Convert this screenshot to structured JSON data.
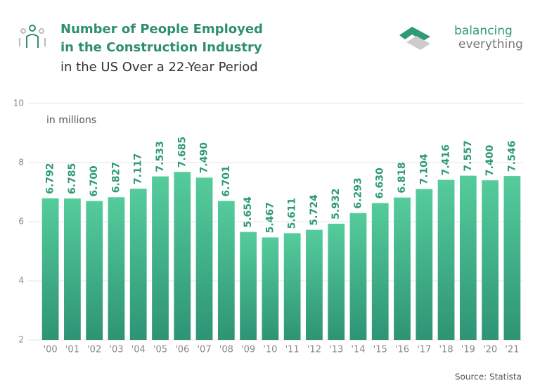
{
  "chart_data": {
    "type": "bar",
    "title": "Number of People Employed",
    "title_line2": "in the Construction Industry",
    "subtitle": "in the US Over a 22-Year Period",
    "unit_note": "in millions",
    "source": "Source: Statista",
    "brand": [
      "balancing",
      "everything"
    ],
    "categories": [
      "'00",
      "'01",
      "'02",
      "'03",
      "'04",
      "'05",
      "'06",
      "'07",
      "'08",
      "'09",
      "'10",
      "'11",
      "'12",
      "'13",
      "'14",
      "'15",
      "'16",
      "'17",
      "'18",
      "'19",
      "'20",
      "'21"
    ],
    "values": [
      6.792,
      6.785,
      6.7,
      6.827,
      7.117,
      7.533,
      7.685,
      7.49,
      6.701,
      5.654,
      5.467,
      5.611,
      5.724,
      5.932,
      6.293,
      6.63,
      6.818,
      7.104,
      7.416,
      7.557,
      7.4,
      7.546
    ],
    "value_labels": [
      "6.792",
      "6.785",
      "6.700",
      "6.827",
      "7.117",
      "7.533",
      "7.685",
      "7.490",
      "6.701",
      "5.654",
      "5.467",
      "5.611",
      "5.724",
      "5.932",
      "6.293",
      "6.630",
      "6.818",
      "7.104",
      "7.416",
      "7.557",
      "7.400",
      "7.546"
    ],
    "colors": [
      "#55cc9c",
      "#2e9474"
    ],
    "ylim": [
      2,
      10
    ],
    "yticks": [
      2,
      4,
      6,
      8,
      10
    ],
    "grid": true
  }
}
